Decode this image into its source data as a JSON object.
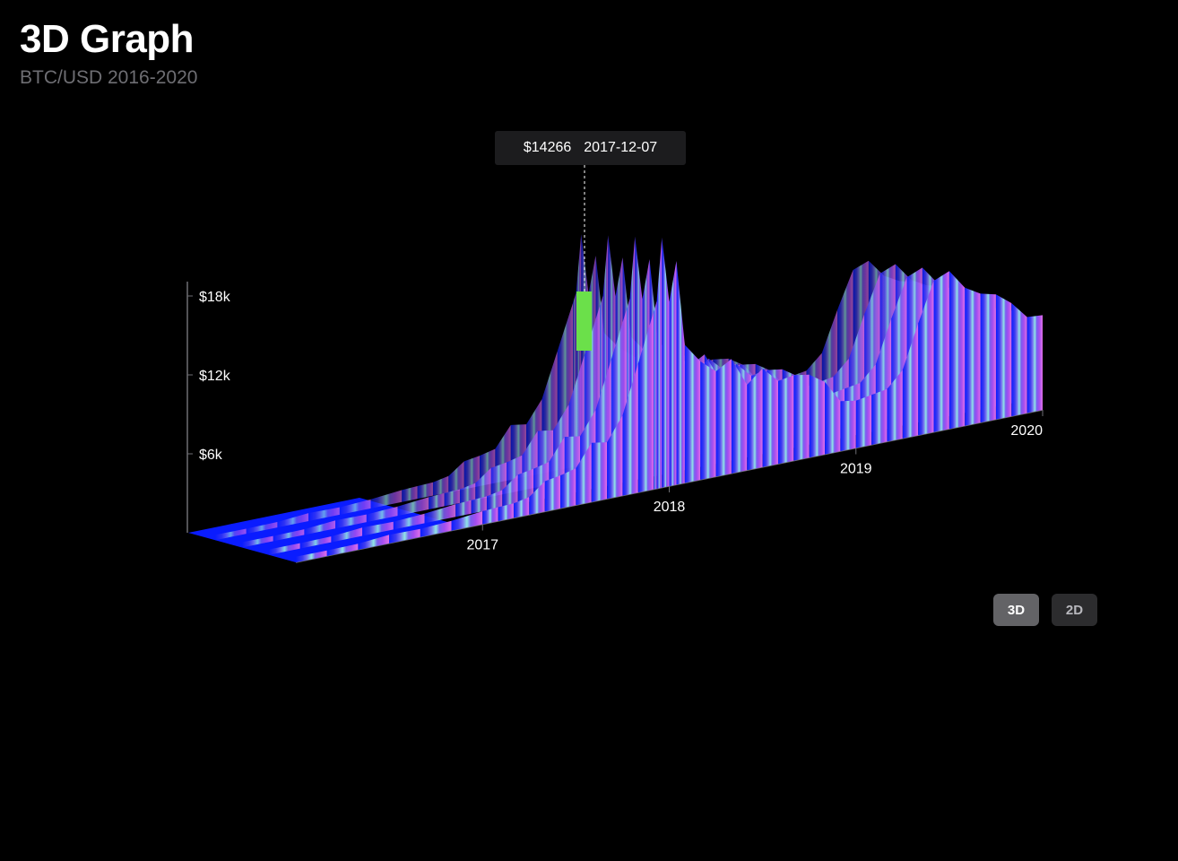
{
  "header": {
    "title": "3D Graph",
    "subtitle": "BTC/USD 2016-2020"
  },
  "tooltip": {
    "price": "$14266",
    "date": "2017-12-07"
  },
  "view_toggle": {
    "options": [
      "3D",
      "2D"
    ],
    "selected": "3D"
  },
  "colors": {
    "background": "#000000",
    "gradient": [
      "#0a1cff",
      "#3f3cf0",
      "#7a74f0",
      "#8fe6e6",
      "#7a5df0",
      "#a44df0",
      "#e070e8"
    ],
    "highlight": "#6be04a"
  },
  "chart_data": {
    "type": "bar",
    "subtype": "3d-ribbon",
    "title": "3D Graph",
    "subtitle": "BTC/USD 2016-2020",
    "xlabel": "",
    "ylabel": "",
    "y_ticks": [
      "$6k",
      "$12k",
      "$18k"
    ],
    "y_tick_values": [
      6000,
      12000,
      18000
    ],
    "x_ticks": [
      "2017",
      "2018",
      "2019",
      "2020"
    ],
    "ylim": [
      0,
      20000
    ],
    "xlim": [
      "2016-01",
      "2020-01"
    ],
    "highlight": {
      "date": "2017-12-07",
      "value": 14266
    },
    "x": [
      "2016-01",
      "2016-03",
      "2016-05",
      "2016-07",
      "2016-09",
      "2016-11",
      "2017-01",
      "2017-02",
      "2017-03",
      "2017-04",
      "2017-05",
      "2017-06",
      "2017-07",
      "2017-08",
      "2017-09",
      "2017-10",
      "2017-11",
      "2017-12",
      "2017-12-07",
      "2017-12-17",
      "2018-01",
      "2018-01-15",
      "2018-02",
      "2018-03",
      "2018-04",
      "2018-05",
      "2018-06",
      "2018-07",
      "2018-08",
      "2018-09",
      "2018-10",
      "2018-11",
      "2018-12",
      "2019-01",
      "2019-02",
      "2019-03",
      "2019-04",
      "2019-05",
      "2019-06",
      "2019-07",
      "2019-08",
      "2019-09",
      "2019-10",
      "2019-11",
      "2019-12",
      "2020-01"
    ],
    "values": [
      430,
      420,
      450,
      650,
      610,
      740,
      990,
      1050,
      1100,
      1350,
      2300,
      2500,
      2800,
      4500,
      4300,
      6100,
      9800,
      13500,
      14266,
      19000,
      14000,
      17000,
      10500,
      9000,
      8000,
      8700,
      6500,
      7500,
      6300,
      6500,
      6300,
      5500,
      3800,
      3600,
      3800,
      4000,
      5200,
      8500,
      11500,
      12000,
      10500,
      9800,
      9500,
      8600,
      7300,
      7200
    ],
    "grid": false,
    "legend": "none"
  }
}
